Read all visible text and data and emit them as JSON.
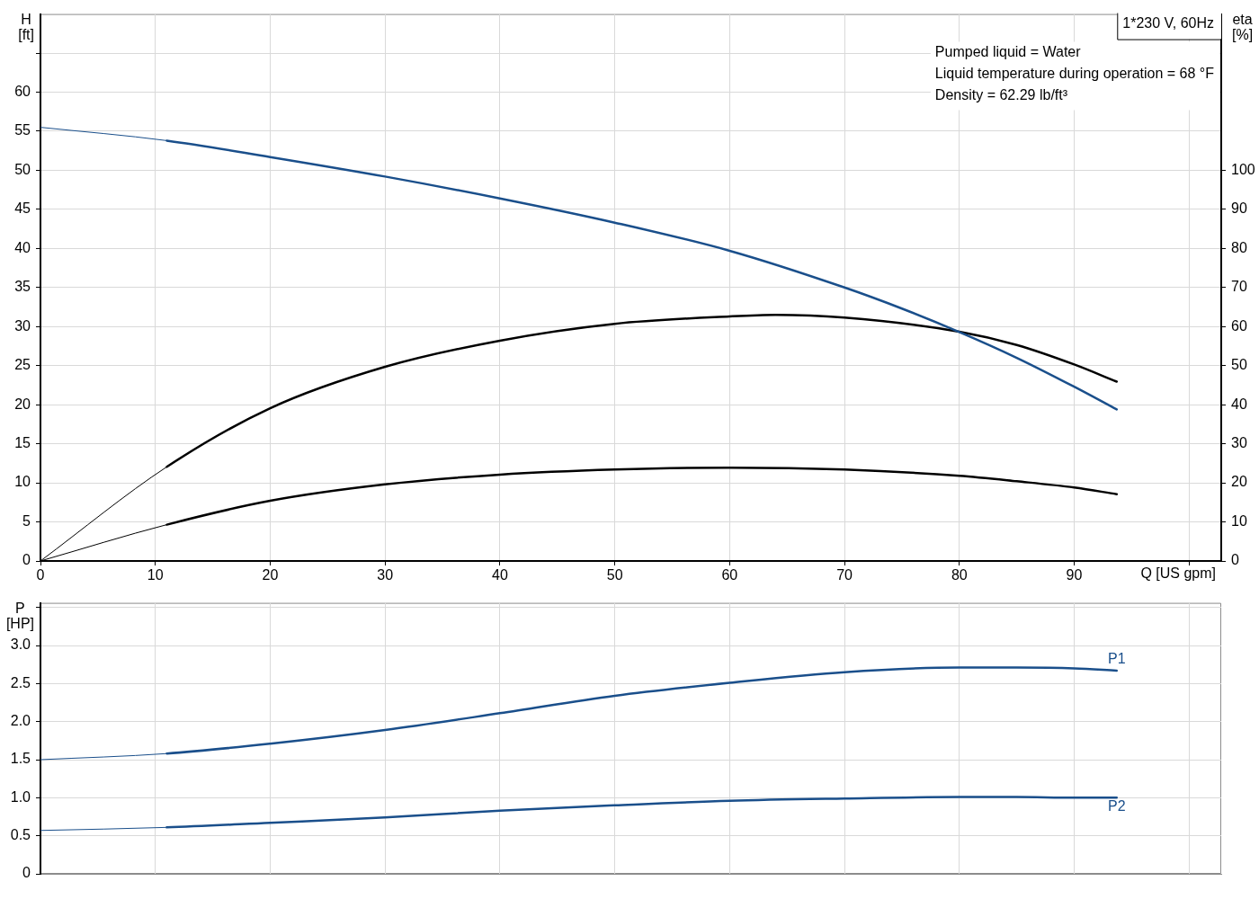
{
  "chart_data": [
    {
      "type": "line",
      "title": "1*230 V, 60Hz",
      "xlabel": "Q [US gpm]",
      "ylabel": "H [ft]",
      "y2label": "eta [%]",
      "annotations": [
        "Pumped liquid = Water",
        "Liquid temperature during operation = 68 °F",
        "Density = 62.29 lb/ft³"
      ],
      "xlim": [
        0,
        102.8
      ],
      "xticks": [
        0,
        10,
        20,
        30,
        40,
        50,
        60,
        70,
        80,
        90,
        {
          "value": 100,
          "label": null
        }
      ],
      "ylim": [
        0,
        70
      ],
      "yticks": [
        0,
        5,
        10,
        15,
        20,
        25,
        30,
        35,
        40,
        45,
        50,
        55,
        60,
        {
          "value": 65,
          "label": null
        }
      ],
      "y2lim": [
        0,
        140
      ],
      "y2ticks": [
        0,
        10,
        20,
        30,
        40,
        50,
        60,
        70,
        80,
        90,
        100
      ],
      "grid": true,
      "series": [
        {
          "color": "#1a4f8b",
          "x": [
            0,
            11,
            20,
            30,
            40,
            50,
            60,
            70,
            75,
            80,
            85,
            90,
            93.7
          ],
          "values": [
            55.5,
            53.8,
            51.7,
            49.2,
            46.4,
            43.3,
            39.7,
            35.0,
            32.3,
            29.3,
            26.0,
            22.3,
            19.4
          ]
        },
        {
          "color": "#000000",
          "axis": "y2",
          "x": [
            0,
            11,
            20,
            30,
            40,
            50,
            60,
            64,
            70,
            80,
            85,
            90,
            93.7
          ],
          "values": [
            0,
            24.1,
            39.1,
            49.7,
            56.4,
            60.7,
            62.6,
            63.0,
            62.3,
            58.7,
            55.3,
            50.3,
            45.9
          ]
        },
        {
          "color": "#000000",
          "axis": "y2",
          "x": [
            0,
            11,
            20,
            30,
            40,
            50,
            60,
            70,
            80,
            85,
            90,
            93.7
          ],
          "values": [
            0,
            9.3,
            15.4,
            19.6,
            22.1,
            23.4,
            23.9,
            23.4,
            21.8,
            20.4,
            18.8,
            17.1
          ]
        }
      ]
    },
    {
      "type": "line",
      "ylabel": "P [HP]",
      "xlim": [
        0,
        102.8
      ],
      "xticks": [
        0,
        10,
        20,
        30,
        40,
        50,
        60,
        70,
        80,
        90,
        100
      ],
      "ylim": [
        0,
        3.56
      ],
      "yticks": [
        0,
        0.5,
        {
          "value": 1,
          "label": "1.0"
        },
        1.5,
        {
          "value": 2,
          "label": "2.0"
        },
        2.5,
        {
          "value": 3,
          "label": "3.0"
        },
        {
          "value": 3.5,
          "label": null
        }
      ],
      "tick_labels": "y",
      "grid": true,
      "series": [
        {
          "name": "P1",
          "color": "#1a4f8b",
          "x": [
            0,
            11,
            20,
            30,
            40,
            50,
            60,
            70,
            80,
            85,
            90,
            93.7
          ],
          "values": [
            1.5,
            1.58,
            1.71,
            1.89,
            2.11,
            2.34,
            2.51,
            2.65,
            2.71,
            2.71,
            2.7,
            2.67
          ]
        },
        {
          "name": "P2",
          "color": "#1a4f8b",
          "x": [
            0,
            11,
            20,
            30,
            40,
            50,
            60,
            70,
            80,
            85,
            90,
            93.7
          ],
          "values": [
            0.57,
            0.61,
            0.67,
            0.74,
            0.83,
            0.9,
            0.96,
            0.99,
            1.01,
            1.01,
            1.0,
            1.0
          ]
        }
      ]
    }
  ]
}
